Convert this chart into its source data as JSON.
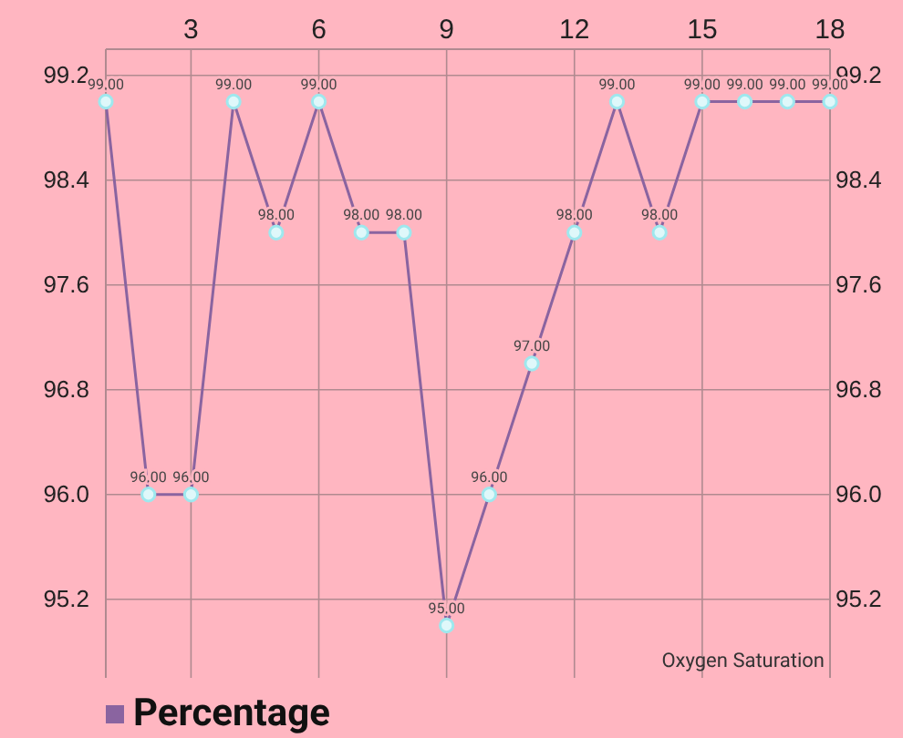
{
  "chart_data": {
    "type": "line",
    "xlabel": "Oxygen Saturation",
    "x": [
      1,
      2,
      3,
      4,
      5,
      6,
      7,
      8,
      9,
      10,
      11,
      12,
      13,
      14,
      15,
      16,
      17,
      18
    ],
    "series": [
      {
        "name": "Percentage",
        "color": "#8a64a0",
        "values": [
          99,
          96,
          96,
          99,
          98,
          99,
          98,
          98,
          95,
          96,
          97,
          98,
          99,
          98,
          99,
          99,
          99,
          99
        ],
        "value_labels": [
          "99.00",
          "96.00",
          "96.00",
          "99.00",
          "98.00",
          "99.00",
          "98.00",
          "98.00",
          "95.00",
          "96.00",
          "97.00",
          "98.00",
          "99.00",
          "98.00",
          "99.00",
          "99.00",
          "99.00",
          "99.00"
        ]
      }
    ],
    "xlim": [
      1,
      18
    ],
    "xticks": [
      3,
      6,
      9,
      12,
      15,
      18
    ],
    "ylim": [
      94.6,
      99.4
    ],
    "yticks": [
      {
        "value": 95.2,
        "label": "95.2"
      },
      {
        "value": 96,
        "label": "96.0"
      },
      {
        "value": 96.8,
        "label": "96.8"
      },
      {
        "value": 97.6,
        "label": "97.6"
      },
      {
        "value": 98.4,
        "label": "98.4"
      },
      {
        "value": 99.2,
        "label": "99.2"
      }
    ],
    "y2lim": [
      94.6,
      99.4
    ],
    "y2ticks": [
      {
        "value": 95.2,
        "label": "95.2"
      },
      {
        "value": 96,
        "label": "96.0"
      },
      {
        "value": 96.8,
        "label": "96.8"
      },
      {
        "value": 97.6,
        "label": "97.6"
      },
      {
        "value": 98.4,
        "label": "98.4"
      },
      {
        "value": 99.2,
        "label": "99.2"
      }
    ],
    "grid": true,
    "legend": "bottom",
    "marker": "circle",
    "line_style": "solid"
  }
}
